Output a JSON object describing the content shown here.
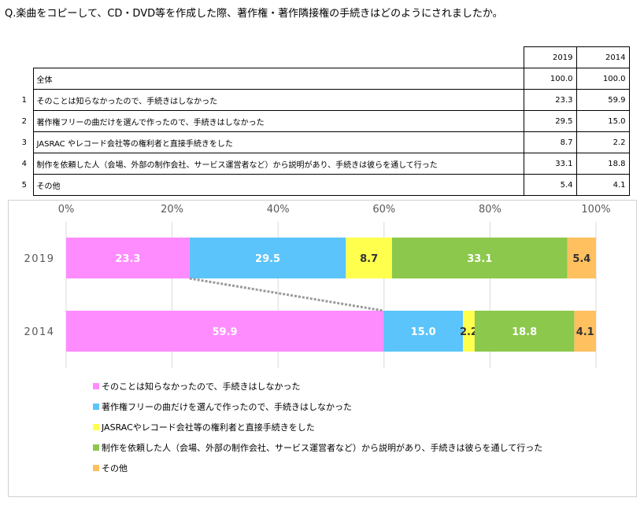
{
  "title": "Q.楽曲をコピーして、CD・DVD等を作成した際、著作権・著作隣接権の手続きはどのようにされましたか。",
  "table": {
    "headers": [
      "2019",
      "2014"
    ],
    "total": {
      "label": "全体",
      "values": [
        "100.0",
        "100.0"
      ]
    },
    "rows": [
      {
        "no": "1",
        "label": "そのことは知らなかったので、手続きはしなかった",
        "values": [
          "23.3",
          "59.9"
        ]
      },
      {
        "no": "2",
        "label": "著作権フリーの曲だけを選んで作ったので、手続きはしなかった",
        "values": [
          "29.5",
          "15.0"
        ]
      },
      {
        "no": "3",
        "label": "JASRAC やレコード会社等の権利者と直接手続きをした",
        "values": [
          "8.7",
          "2.2"
        ]
      },
      {
        "no": "4",
        "label": "制作を依頼した人（会場、外部の制作会社、サービス運営者など）から説明があり、手続きは彼らを通して行った",
        "values": [
          "33.1",
          "18.8"
        ]
      },
      {
        "no": "5",
        "label": "その他",
        "values": [
          "5.4",
          "4.1"
        ]
      }
    ]
  },
  "chart_data": {
    "type": "bar",
    "orientation": "horizontal",
    "stacked": "percent",
    "categories": [
      "2019",
      "2014"
    ],
    "xlim": [
      0,
      100
    ],
    "x_ticks": [
      "0%",
      "20%",
      "40%",
      "60%",
      "80%",
      "100%"
    ],
    "series": [
      {
        "name": "そのことは知らなかったので、手続きはしなかった",
        "values": [
          23.3,
          59.9
        ],
        "color": "#ff8cff"
      },
      {
        "name": "著作権フリーの曲だけを選んで作ったので、手続きはしなかった",
        "values": [
          29.5,
          15.0
        ],
        "color": "#5bc4fa"
      },
      {
        "name": "JASRACやレコード会社等の権利者と直接手続きをした",
        "values": [
          8.7,
          2.2
        ],
        "color": "#ffff4d"
      },
      {
        "name": "制作を依頼した人（会場、外部の制作会社、サービス運営者など）から説明があり、手続きは彼らを通して行った",
        "values": [
          33.1,
          18.8
        ],
        "color": "#8cc84b"
      },
      {
        "name": "その他",
        "values": [
          5.4,
          4.1
        ],
        "color": "#ffc060"
      }
    ],
    "data_label_colors": [
      "#ffffff",
      "#ffffff",
      "#333333",
      "#ffffff",
      "#333333"
    ],
    "legend_position": "bottom",
    "grid": true,
    "connector_line_color": "#9a9a9a"
  }
}
